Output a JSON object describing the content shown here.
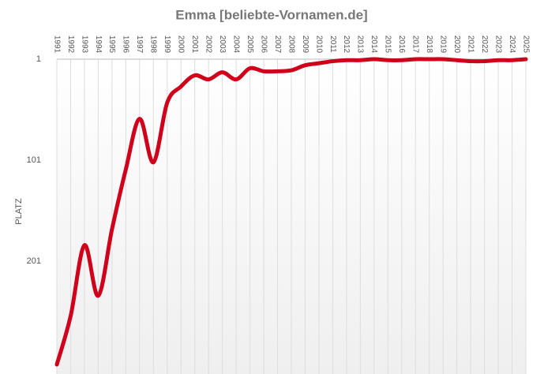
{
  "chart_data": {
    "type": "line",
    "title": "Emma [beliebte-Vornamen.de]",
    "y_label": "PLATZ",
    "x": [
      1991,
      1992,
      1993,
      1994,
      1995,
      1996,
      1997,
      1998,
      1999,
      2000,
      2001,
      2002,
      2003,
      2004,
      2005,
      2006,
      2007,
      2008,
      2009,
      2010,
      2011,
      2012,
      2013,
      2014,
      2015,
      2016,
      2017,
      2018,
      2019,
      2020,
      2021,
      2022,
      2023,
      2024,
      2025
    ],
    "series": [
      {
        "name": "Emma",
        "color": "#d0021b",
        "values": [
          303,
          255,
          185,
          235,
          169,
          110,
          60,
          103,
          44,
          28,
          17,
          21,
          14,
          21,
          10,
          13,
          13,
          12,
          7,
          5,
          3,
          2,
          2,
          1,
          2,
          2,
          1,
          1,
          1,
          2,
          3,
          3,
          2,
          2,
          1
        ]
      }
    ],
    "xlim": [
      1991,
      2025
    ],
    "xticks": [
      1991,
      1992,
      1993,
      1994,
      1995,
      1996,
      1997,
      1998,
      1999,
      2000,
      2001,
      2002,
      2003,
      2004,
      2005,
      2006,
      2007,
      2008,
      2009,
      2010,
      2011,
      2012,
      2013,
      2014,
      2015,
      2016,
      2017,
      2018,
      2019,
      2020,
      2021,
      2022,
      2023,
      2024,
      2025
    ],
    "ylim": [
      1,
      303
    ],
    "yticks": [
      1,
      101,
      201
    ],
    "inverted_y": true,
    "grid": true
  }
}
